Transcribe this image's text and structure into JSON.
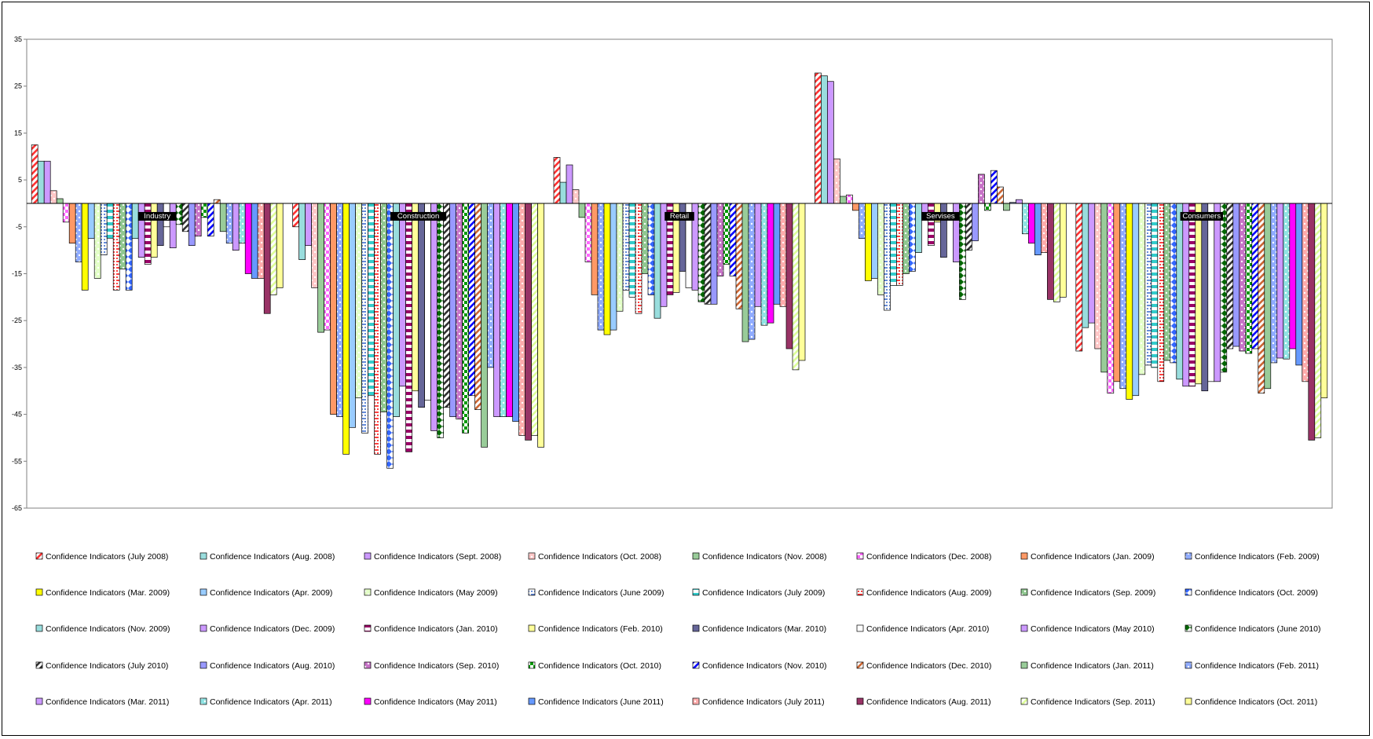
{
  "chart_data": {
    "type": "bar",
    "categories": [
      "Industry",
      "Construction",
      "Retail",
      "Servises",
      "Consumers"
    ],
    "ylim": [
      -65,
      35
    ],
    "yticks": [
      35,
      25,
      15,
      5,
      -5,
      -15,
      -25,
      -35,
      -45,
      -55,
      -65
    ],
    "grid": false,
    "legend_position": "bottom",
    "series": [
      {
        "name": "Confidence Indicators (July 2008)",
        "color": "#FF3333",
        "pattern": "diag",
        "values": [
          12.5,
          -5,
          9.8,
          27.8,
          -31.5
        ]
      },
      {
        "name": "Confidence Indicators (Aug. 2008)",
        "color": "#99DDDD",
        "pattern": "solid",
        "values": [
          9,
          -12,
          4.5,
          27.2,
          -26.5
        ]
      },
      {
        "name": "Confidence Indicators (Sept. 2008)",
        "color": "#CC99FF",
        "pattern": "solid",
        "values": [
          9,
          -9,
          8.2,
          26,
          -25.5
        ]
      },
      {
        "name": "Confidence Indicators (Oct. 2008)",
        "color": "#FF9999",
        "pattern": "dots",
        "values": [
          2.7,
          -18,
          2.9,
          9.5,
          -31
        ]
      },
      {
        "name": "Confidence Indicators (Nov. 2008)",
        "color": "#99CC99",
        "pattern": "solid",
        "values": [
          1,
          -27.5,
          -3,
          1.5,
          -36
        ]
      },
      {
        "name": "Confidence Indicators (Dec. 2008)",
        "color": "#FF66FF",
        "pattern": "checker",
        "values": [
          -4,
          -27,
          -12.5,
          1.8,
          -40.5
        ]
      },
      {
        "name": "Confidence Indicators (Jan. 2009)",
        "color": "#FF9966",
        "pattern": "solid",
        "values": [
          -8.5,
          -45,
          -19.5,
          -1.5,
          -38
        ]
      },
      {
        "name": "Confidence Indicators (Feb. 2009)",
        "color": "#3366FF",
        "pattern": "dots",
        "values": [
          -12.5,
          -45.5,
          -27,
          -7.5,
          -39.5
        ]
      },
      {
        "name": "Confidence Indicators (Mar. 2009)",
        "color": "#FFFF00",
        "pattern": "solid",
        "values": [
          -18.5,
          -53.5,
          -28,
          -16.5,
          -41.8
        ]
      },
      {
        "name": "Confidence Indicators (Apr. 2009)",
        "color": "#99CCFF",
        "pattern": "solid",
        "values": [
          -7.5,
          -47.8,
          -27,
          -16,
          -41
        ]
      },
      {
        "name": "Confidence Indicators (May 2009)",
        "color": "#CCFF99",
        "pattern": "dots",
        "values": [
          -16,
          -41.5,
          -23,
          -19.5,
          -36.5
        ]
      },
      {
        "name": "Confidence Indicators (June 2009)",
        "color": "#3366CC",
        "pattern": "dash",
        "values": [
          -11,
          -49,
          -18.5,
          -22.8,
          -34.5
        ]
      },
      {
        "name": "Confidence Indicators (July 2009)",
        "color": "#33CCCC",
        "pattern": "hstripe",
        "values": [
          -7.5,
          -41,
          -20,
          -17.5,
          -35
        ]
      },
      {
        "name": "Confidence Indicators (Aug. 2009)",
        "color": "#FF0000",
        "pattern": "dash",
        "values": [
          -18.5,
          -53.5,
          -23.5,
          -17.5,
          -38
        ]
      },
      {
        "name": "Confidence Indicators (Sep. 2009)",
        "color": "#339933",
        "pattern": "dots",
        "values": [
          -14,
          -44.5,
          -15,
          -15,
          -33.5
        ]
      },
      {
        "name": "Confidence Indicators (Oct. 2009)",
        "color": "#3366FF",
        "pattern": "diamond",
        "values": [
          -18.5,
          -56.5,
          -19.5,
          -14.5,
          -34
        ]
      },
      {
        "name": "Confidence Indicators (Nov. 2009)",
        "color": "#99DDDD",
        "pattern": "solid",
        "values": [
          -7.5,
          -45.5,
          -24.5,
          -10.5,
          -37.5
        ]
      },
      {
        "name": "Confidence Indicators (Dec. 2009)",
        "color": "#CC99FF",
        "pattern": "solid",
        "values": [
          -11.5,
          -39,
          -22,
          -2,
          -39
        ]
      },
      {
        "name": "Confidence Indicators (Jan. 2010)",
        "color": "#990066",
        "pattern": "hstripe",
        "values": [
          -13,
          -53,
          -19.5,
          -9,
          -39
        ]
      },
      {
        "name": "Confidence Indicators (Feb. 2010)",
        "color": "#FFFF99",
        "pattern": "solid",
        "values": [
          -11.5,
          -40,
          -19,
          -4,
          -38.5
        ]
      },
      {
        "name": "Confidence Indicators (Mar. 2010)",
        "color": "#666699",
        "pattern": "solid",
        "values": [
          -9,
          -43.5,
          -14.5,
          -11.5,
          -40
        ]
      },
      {
        "name": "Confidence Indicators (Apr. 2010)",
        "color": "#FFFFFF",
        "pattern": "solid",
        "values": [
          -5,
          -42,
          -18,
          -3.5,
          -38
        ]
      },
      {
        "name": "Confidence Indicators (May 2010)",
        "color": "#CC99FF",
        "pattern": "solid",
        "values": [
          -9.5,
          -48.5,
          -18.5,
          -12.5,
          -38
        ]
      },
      {
        "name": "Confidence Indicators (June 2010)",
        "color": "#006600",
        "pattern": "diamond",
        "values": [
          -4.5,
          -50,
          -21,
          -20.5,
          -36
        ]
      },
      {
        "name": "Confidence Indicators (July 2010)",
        "color": "#333333",
        "pattern": "diag",
        "values": [
          -6,
          -43.5,
          -21.5,
          -10,
          -31
        ]
      },
      {
        "name": "Confidence Indicators (Aug. 2010)",
        "color": "#9999FF",
        "pattern": "solid",
        "values": [
          -9,
          -45.5,
          -21.5,
          -8,
          -30.5
        ]
      },
      {
        "name": "Confidence Indicators (Sep. 2010)",
        "color": "#990099",
        "pattern": "dots",
        "values": [
          -7,
          -46,
          -15.5,
          6.2,
          -31.5
        ]
      },
      {
        "name": "Confidence Indicators (Oct. 2010)",
        "color": "#009900",
        "pattern": "checker",
        "values": [
          -3,
          -49,
          -13,
          -1.5,
          -32
        ]
      },
      {
        "name": "Confidence Indicators (Nov. 2010)",
        "color": "#0000FF",
        "pattern": "diag",
        "values": [
          -7,
          -41,
          -15.5,
          7,
          -31
        ]
      },
      {
        "name": "Confidence Indicators (Dec. 2010)",
        "color": "#CC6633",
        "pattern": "diag",
        "values": [
          0.8,
          -44,
          -22.5,
          3.5,
          -40.5
        ]
      },
      {
        "name": "Confidence Indicators (Jan. 2011)",
        "color": "#99CC99",
        "pattern": "solid",
        "values": [
          -6,
          -52,
          -29.5,
          -1.5,
          -39.5
        ]
      },
      {
        "name": "Confidence Indicators (Feb. 2011)",
        "color": "#3366FF",
        "pattern": "dots",
        "values": [
          -8.5,
          -35,
          -29,
          0.2,
          -34
        ]
      },
      {
        "name": "Confidence Indicators (Mar. 2011)",
        "color": "#CC99FF",
        "pattern": "solid",
        "values": [
          -10,
          -45.5,
          -22,
          0.8,
          -33
        ]
      },
      {
        "name": "Confidence Indicators (Apr. 2011)",
        "color": "#33CCCC",
        "pattern": "dots",
        "values": [
          -8.5,
          -45.5,
          -26,
          -6.5,
          -33.2
        ]
      },
      {
        "name": "Confidence Indicators (May 2011)",
        "color": "#FF00FF",
        "pattern": "solid",
        "values": [
          -15,
          -45.5,
          -25.5,
          -8.5,
          -31
        ]
      },
      {
        "name": "Confidence Indicators (June 2011)",
        "color": "#6699FF",
        "pattern": "solid",
        "values": [
          -16,
          -46.5,
          -21.5,
          -11,
          -34.5
        ]
      },
      {
        "name": "Confidence Indicators (July 2011)",
        "color": "#FF6666",
        "pattern": "dots",
        "values": [
          -16,
          -49.5,
          -22,
          -10.5,
          -38
        ]
      },
      {
        "name": "Confidence Indicators (Aug. 2011)",
        "color": "#993366",
        "pattern": "solid",
        "values": [
          -23.5,
          -50.5,
          -31,
          -20.5,
          -50.5
        ]
      },
      {
        "name": "Confidence Indicators (Sep. 2011)",
        "color": "#DDFF99",
        "pattern": "diag",
        "values": [
          -19.5,
          -49.5,
          -35.5,
          -21,
          -50
        ]
      },
      {
        "name": "Confidence Indicators (Oct. 2011)",
        "color": "#FFFF99",
        "pattern": "solid",
        "values": [
          -18,
          -52,
          -33.5,
          -20,
          -41.5
        ]
      }
    ]
  }
}
